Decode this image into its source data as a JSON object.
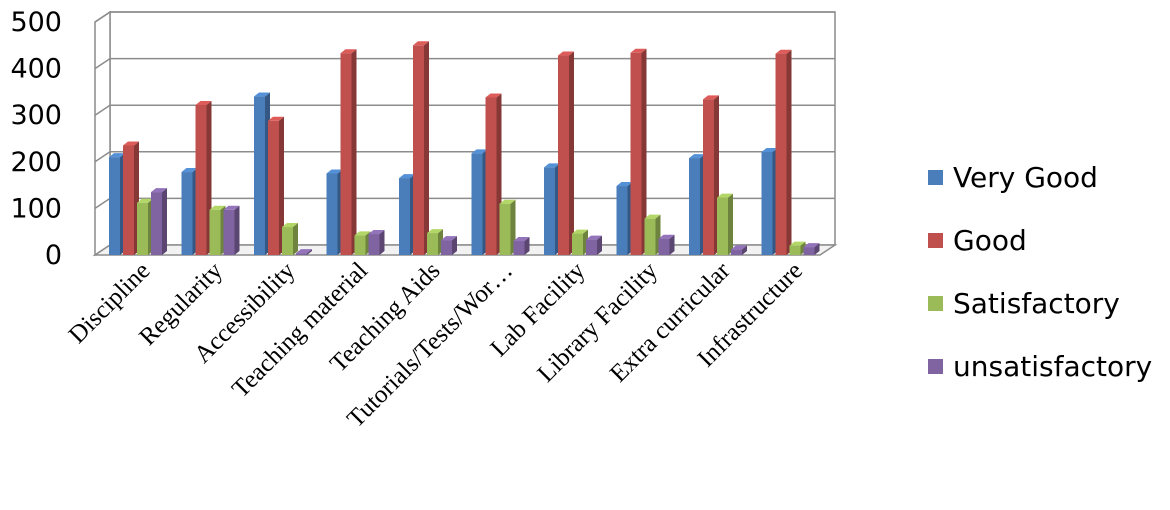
{
  "chart_data": {
    "type": "bar",
    "categories": [
      "Discipline",
      "Regularity",
      "Accessibility",
      "Teaching material",
      "Teaching Aids",
      "Tutorials/Tests/Wor…",
      "Lab Facility",
      "Library Facility",
      "Extra curricular",
      "Infrastructure"
    ],
    "series": [
      {
        "name": "Very Good",
        "color": "#4a7ebb",
        "values": [
          210,
          178,
          340,
          175,
          165,
          218,
          188,
          148,
          208,
          221
        ]
      },
      {
        "name": "Good",
        "color": "#c0504d",
        "values": [
          235,
          322,
          288,
          433,
          450,
          338,
          428,
          434,
          334,
          432
        ]
      },
      {
        "name": "Satisfactory",
        "color": "#9bbb59",
        "values": [
          112,
          97,
          60,
          42,
          47,
          110,
          46,
          78,
          123,
          20
        ]
      },
      {
        "name": "unsatisfactory",
        "color": "#8064a2",
        "values": [
          135,
          97,
          4,
          45,
          32,
          30,
          33,
          35,
          12,
          17
        ]
      }
    ],
    "ylim": [
      0,
      500
    ],
    "yticks": [
      0,
      100,
      200,
      300,
      400,
      500
    ],
    "grid": true,
    "legend_position": "right"
  }
}
